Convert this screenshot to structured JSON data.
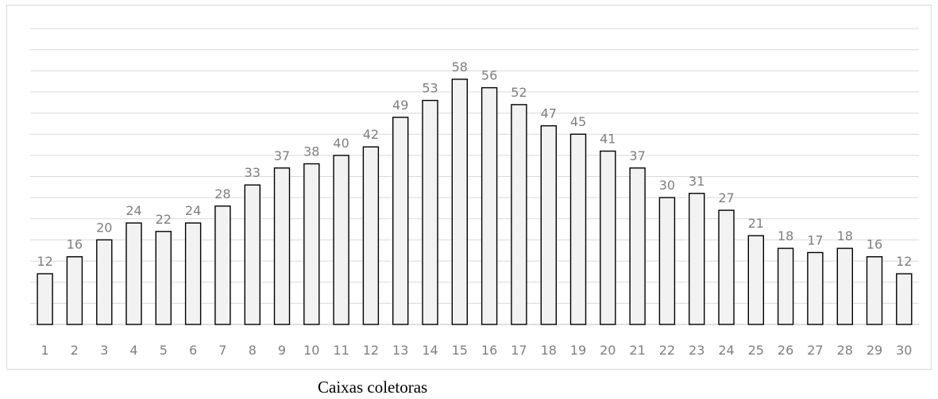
{
  "chart_data": {
    "type": "bar",
    "title": "",
    "xlabel": "Caixas coletoras",
    "ylabel": "",
    "ylim": [
      0,
      70
    ],
    "grid": true,
    "legend": "none",
    "categories": [
      "1",
      "2",
      "3",
      "4",
      "5",
      "6",
      "7",
      "8",
      "9",
      "10",
      "11",
      "12",
      "13",
      "14",
      "15",
      "16",
      "17",
      "18",
      "19",
      "20",
      "21",
      "22",
      "23",
      "24",
      "25",
      "26",
      "27",
      "28",
      "29",
      "30"
    ],
    "values": [
      12,
      16,
      20,
      24,
      22,
      24,
      28,
      33,
      37,
      38,
      40,
      42,
      49,
      53,
      58,
      56,
      52,
      47,
      45,
      41,
      37,
      30,
      31,
      27,
      21,
      18,
      17,
      18,
      16,
      12
    ],
    "colors": {
      "bar_fill": "#f2f2f2",
      "bar_stroke": "#000000",
      "label": "#7f7f7f",
      "grid": "#d9d9d9"
    }
  }
}
